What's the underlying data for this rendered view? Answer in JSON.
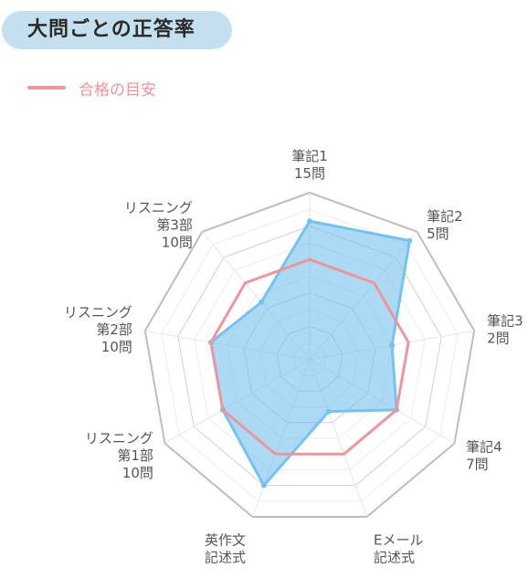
{
  "header": {
    "title": "大問ごとの正答率"
  },
  "legend": {
    "label": "合格の目安",
    "color": "#f0949b"
  },
  "chart_data": {
    "type": "radar",
    "title": "大問ごとの正答率",
    "axes": [
      {
        "lines": [
          "筆記1",
          "15問"
        ]
      },
      {
        "lines": [
          "筆記2",
          "5問"
        ]
      },
      {
        "lines": [
          "筆記3",
          "2問"
        ]
      },
      {
        "lines": [
          "筆記4",
          "7問"
        ]
      },
      {
        "lines": [
          "Eメール",
          "記述式"
        ]
      },
      {
        "lines": [
          "英作文",
          "記述式"
        ]
      },
      {
        "lines": [
          "リスニング",
          "第1部",
          "10問"
        ]
      },
      {
        "lines": [
          "リスニング",
          "第2部",
          "10問"
        ]
      },
      {
        "lines": [
          "リスニング",
          "第3部",
          "10問"
        ]
      }
    ],
    "range": [
      0,
      100
    ],
    "grid_rings": 10,
    "series": [
      {
        "name": "合格の目安",
        "values": [
          60,
          60,
          60,
          60,
          60,
          60,
          60,
          60,
          60
        ],
        "color": "#f0949b",
        "fill": false
      },
      {
        "values": [
          83,
          93,
          50,
          60,
          33,
          80,
          60,
          60,
          45
        ],
        "color": "#75c2ef",
        "fill": true
      }
    ]
  }
}
